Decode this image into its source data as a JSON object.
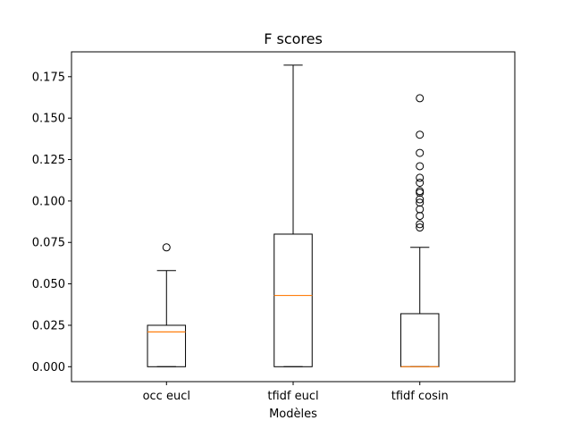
{
  "chart_data": {
    "type": "box",
    "title": "F scores",
    "xlabel": "Modèles",
    "ylabel": "",
    "ylim": [
      -0.009,
      0.19
    ],
    "yticks": [
      "0.000",
      "0.025",
      "0.050",
      "0.075",
      "0.100",
      "0.125",
      "0.150",
      "0.175"
    ],
    "grid": false,
    "colors": {
      "box": "#000000",
      "median": "#ff7f0e",
      "outlier": "#000000"
    },
    "categories": [
      "occ eucl",
      "tfidf eucl",
      "tfidf cosin"
    ],
    "boxes": [
      {
        "label": "occ eucl",
        "whisker_low": 0.0,
        "q1": 0.0,
        "median": 0.021,
        "q3": 0.025,
        "whisker_high": 0.058,
        "outliers": [
          0.072
        ]
      },
      {
        "label": "tfidf eucl",
        "whisker_low": 0.0,
        "q1": 0.0,
        "median": 0.043,
        "q3": 0.08,
        "whisker_high": 0.182,
        "outliers": []
      },
      {
        "label": "tfidf cosin",
        "whisker_low": 0.0,
        "q1": 0.0,
        "median": 0.0,
        "q3": 0.032,
        "whisker_high": 0.072,
        "outliers": [
          0.084,
          0.086,
          0.091,
          0.095,
          0.099,
          0.101,
          0.105,
          0.106,
          0.111,
          0.114,
          0.121,
          0.129,
          0.14,
          0.162
        ]
      }
    ]
  }
}
